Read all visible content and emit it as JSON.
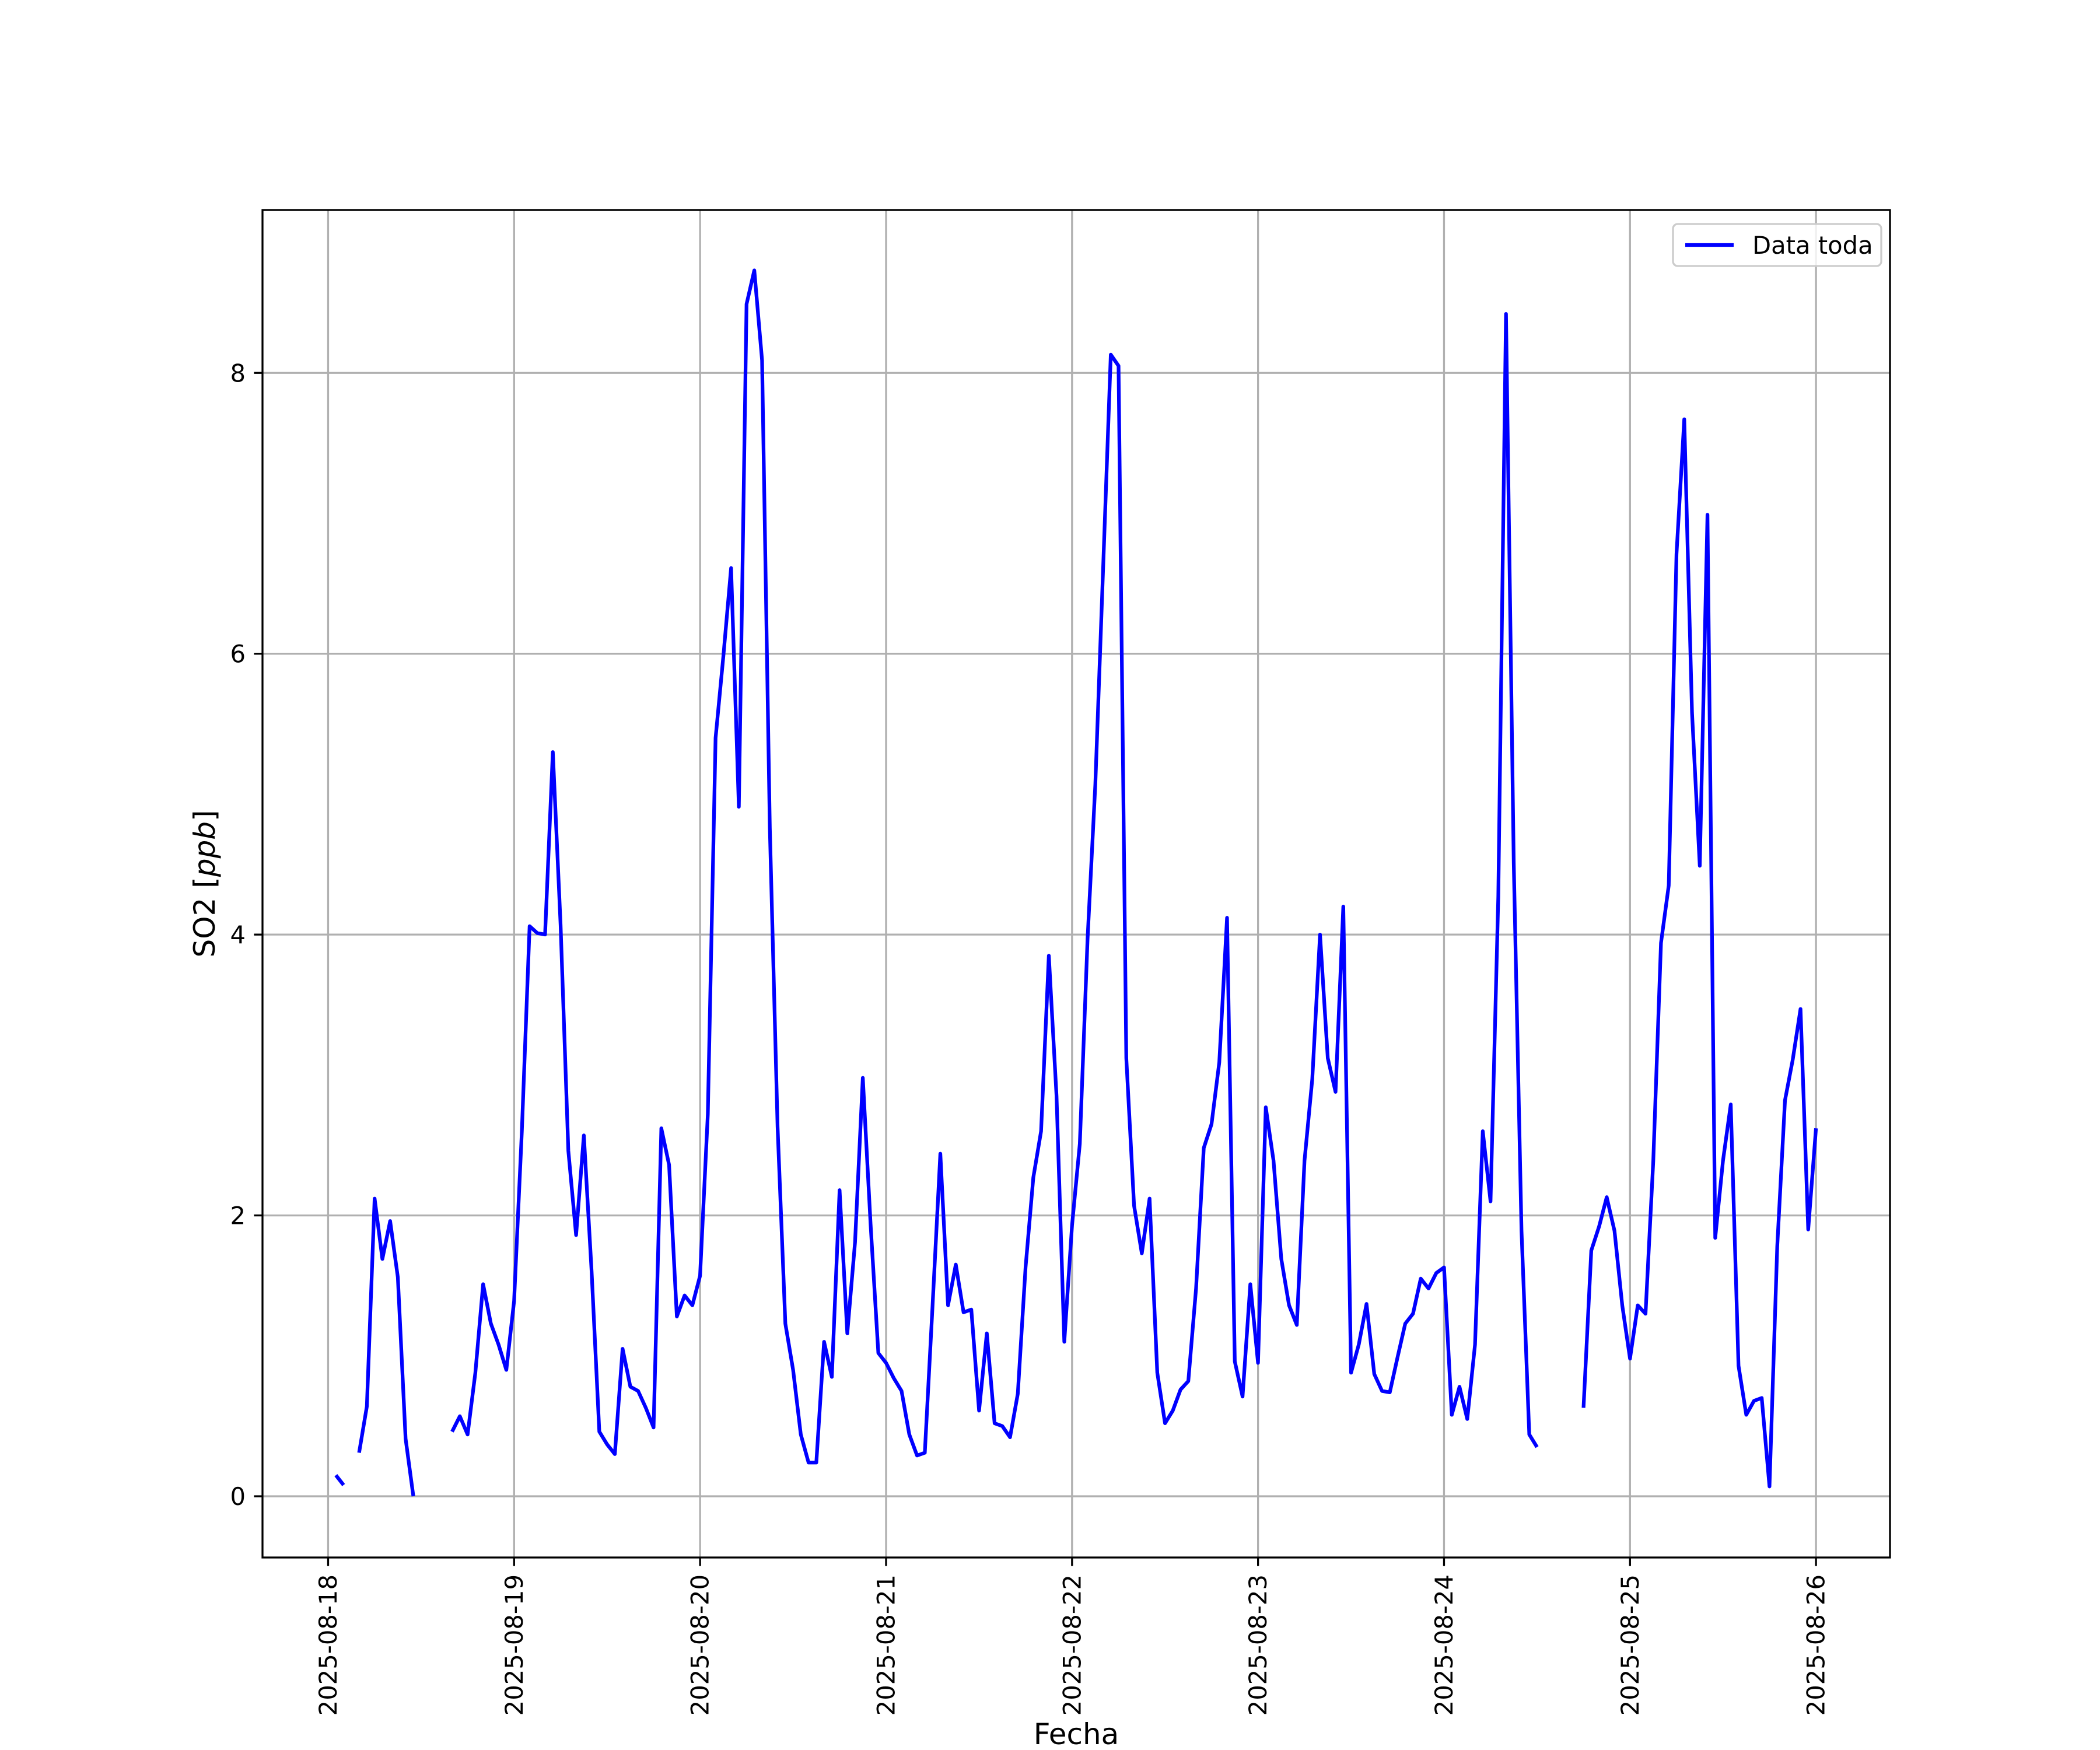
{
  "chart_data": {
    "type": "line",
    "title": "",
    "xlabel": "Fecha",
    "ylabel": "SO2 [ppb]",
    "ylabel_parts": {
      "plain": "SO2 [",
      "italic": "ppb",
      "close": "]"
    },
    "xlim": [
      "2025-08-17 15:32",
      "2025-08-26 09:33"
    ],
    "ylim": [
      -0.436,
      9.16
    ],
    "grid": true,
    "legend_position": "top-right",
    "x_tick_labels": [
      "2025-08-18",
      "2025-08-19",
      "2025-08-20",
      "2025-08-21",
      "2025-08-22",
      "2025-08-23",
      "2025-08-24",
      "2025-08-25",
      "2025-08-26"
    ],
    "y_ticks": [
      0,
      2,
      4,
      6,
      8
    ],
    "y_tick_labels": [
      "0",
      "2",
      "4",
      "6",
      "8"
    ],
    "series": [
      {
        "name": "Data toda",
        "color": "#0000ff",
        "sampling": "hourly",
        "days": [
          {
            "date": "2025-08-18",
            "values": [
              null,
              0.15,
              0.08,
              null,
              0.31,
              0.64,
              2.12,
              1.69,
              1.96,
              1.56,
              0.41,
              0.0,
              null,
              null,
              null,
              null,
              0.46,
              0.57,
              0.44,
              0.88,
              1.51,
              1.23,
              1.08,
              0.9
            ]
          },
          {
            "date": "2025-08-19",
            "values": [
              1.39,
              2.6,
              4.06,
              4.01,
              4.0,
              5.3,
              4.07,
              2.46,
              1.86,
              2.57,
              1.6,
              0.46,
              0.37,
              0.3,
              1.05,
              0.78,
              0.75,
              0.63,
              0.49,
              2.62,
              2.36,
              1.28,
              1.43,
              1.36
            ]
          },
          {
            "date": "2025-08-20",
            "values": [
              1.57,
              2.72,
              5.4,
              5.98,
              6.61,
              4.91,
              8.49,
              8.73,
              8.09,
              4.76,
              2.63,
              1.23,
              0.9,
              0.44,
              0.24,
              0.24,
              1.1,
              0.85,
              2.18,
              1.16,
              1.81,
              2.98,
              1.94,
              1.02
            ]
          },
          {
            "date": "2025-08-21",
            "values": [
              0.95,
              0.84,
              0.75,
              0.44,
              0.29,
              0.31,
              1.36,
              2.44,
              1.36,
              1.65,
              1.31,
              1.33,
              0.61,
              1.16,
              0.52,
              0.5,
              0.42,
              0.73,
              1.63,
              2.27,
              2.6,
              3.85,
              2.85,
              1.1
            ]
          },
          {
            "date": "2025-08-22",
            "values": [
              1.93,
              2.51,
              3.97,
              5.07,
              6.59,
              8.13,
              8.05,
              3.12,
              2.07,
              1.73,
              2.12,
              0.88,
              0.52,
              0.61,
              0.76,
              0.82,
              1.48,
              2.48,
              2.65,
              3.09,
              4.12,
              0.96,
              0.71,
              1.51
            ]
          },
          {
            "date": "2025-08-23",
            "values": [
              0.95,
              2.77,
              2.39,
              1.69,
              1.36,
              1.22,
              2.39,
              2.97,
              4.0,
              3.12,
              2.88,
              4.2,
              0.88,
              1.08,
              1.37,
              0.87,
              0.75,
              0.74,
              0.99,
              1.23,
              1.3,
              1.55,
              1.48,
              1.59
            ]
          },
          {
            "date": "2025-08-24",
            "values": [
              1.63,
              0.58,
              0.78,
              0.55,
              1.08,
              2.6,
              2.1,
              4.27,
              8.42,
              4.51,
              1.89,
              0.44,
              0.35,
              null,
              null,
              null,
              null,
              null,
              0.63,
              1.75,
              1.92,
              2.13,
              1.89,
              1.36
            ]
          },
          {
            "date": "2025-08-25",
            "values": [
              0.98,
              1.36,
              1.3,
              2.39,
              3.94,
              4.35,
              6.71,
              7.67,
              5.58,
              4.49,
              6.99,
              1.84,
              2.39,
              2.79,
              0.93,
              0.58,
              0.68,
              0.7,
              0.07,
              1.78,
              2.82,
              3.11,
              3.47,
              1.9
            ]
          },
          {
            "date": "2025-08-26",
            "values": [
              2.62
            ]
          }
        ]
      }
    ]
  }
}
